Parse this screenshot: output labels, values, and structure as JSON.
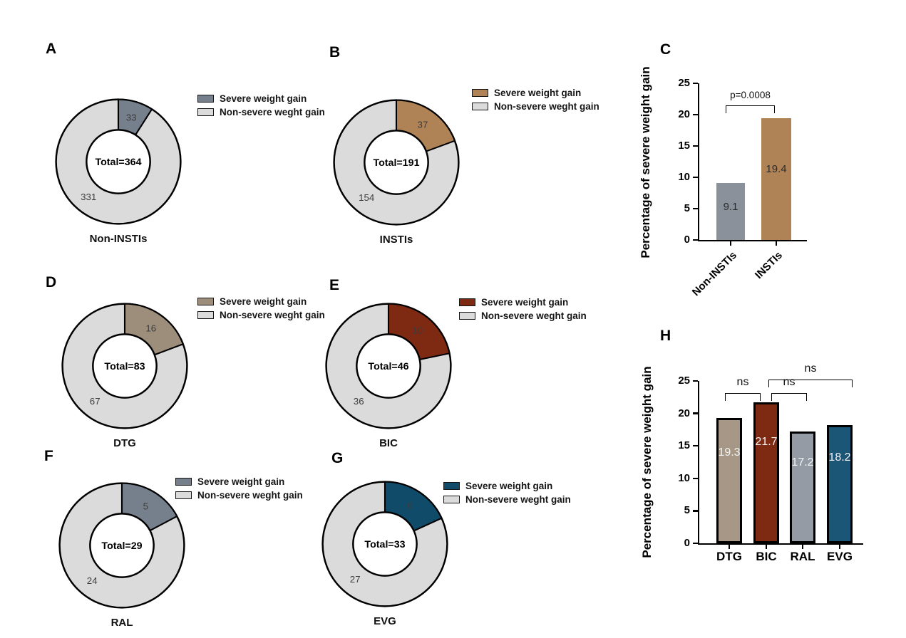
{
  "legend": {
    "severe_label": "Severe weight gain",
    "non_severe_label": "Non-severe weght gain"
  },
  "chart_data": [
    {
      "panel": "A",
      "type": "pie",
      "title": "Non-INSTIs",
      "center_label": "Total=364",
      "labels": [
        "Severe weight gain",
        "Non-severe weght gain"
      ],
      "values": [
        33,
        331
      ],
      "total": 364,
      "colors": [
        "#76808C",
        "#DBDBDB"
      ]
    },
    {
      "panel": "B",
      "type": "pie",
      "title": "INSTIs",
      "center_label": "Total=191",
      "labels": [
        "Severe weight gain",
        "Non-severe weght gain"
      ],
      "values": [
        37,
        154
      ],
      "total": 191,
      "colors": [
        "#B08356",
        "#DBDBDB"
      ]
    },
    {
      "panel": "C",
      "type": "bar",
      "ylabel": "Percentage of severe weight gain",
      "categories": [
        "Non-INSTIs",
        "INSTIs"
      ],
      "values": [
        9.1,
        19.4
      ],
      "value_labels": [
        "9.1",
        "19.4"
      ],
      "colors": [
        "#8A919B",
        "#B08356"
      ],
      "yticks": [
        0,
        5,
        10,
        15,
        20,
        25
      ],
      "ylim": [
        0,
        25
      ],
      "annotation": {
        "label": "p=0.0008",
        "between": [
          "Non-INSTIs",
          "INSTIs"
        ]
      }
    },
    {
      "panel": "D",
      "type": "pie",
      "title": "DTG",
      "center_label": "Total=83",
      "labels": [
        "Severe weight gain",
        "Non-severe weght gain"
      ],
      "values": [
        16,
        67
      ],
      "total": 83,
      "colors": [
        "#9D8E7C",
        "#DBDBDB"
      ]
    },
    {
      "panel": "E",
      "type": "pie",
      "title": "BIC",
      "center_label": "Total=46",
      "labels": [
        "Severe weight gain",
        "Non-severe weght gain"
      ],
      "values": [
        10,
        36
      ],
      "total": 46,
      "colors": [
        "#7E2912",
        "#DBDBDB"
      ]
    },
    {
      "panel": "F",
      "type": "pie",
      "title": "RAL",
      "center_label": "Total=29",
      "labels": [
        "Severe weight gain",
        "Non-severe weght gain"
      ],
      "values": [
        5,
        24
      ],
      "total": 29,
      "colors": [
        "#76808C",
        "#DBDBDB"
      ]
    },
    {
      "panel": "G",
      "type": "pie",
      "title": "EVG",
      "center_label": "Total=33",
      "labels": [
        "Severe weight gain",
        "Non-severe weght gain"
      ],
      "values": [
        6,
        27
      ],
      "total": 33,
      "colors": [
        "#104C69",
        "#DBDBDB"
      ]
    },
    {
      "panel": "H",
      "type": "bar",
      "ylabel": "Percentage of severe weight gain",
      "categories": [
        "DTG",
        "BIC",
        "RAL",
        "EVG"
      ],
      "values": [
        19.3,
        21.7,
        17.2,
        18.2
      ],
      "value_labels": [
        "19.3",
        "21.7",
        "17.2",
        "18.2"
      ],
      "colors": [
        "#A69786",
        "#7E2912",
        "#949BA5",
        "#1C5677"
      ],
      "yticks": [
        0,
        5,
        10,
        15,
        20,
        25
      ],
      "ylim": [
        0,
        25
      ],
      "brackets": [
        {
          "between": [
            "DTG",
            "BIC"
          ],
          "label": "ns"
        },
        {
          "between": [
            "BIC",
            "RAL"
          ],
          "label": "ns"
        },
        {
          "between": [
            "BIC",
            "EVG"
          ],
          "label": "ns"
        }
      ]
    }
  ]
}
